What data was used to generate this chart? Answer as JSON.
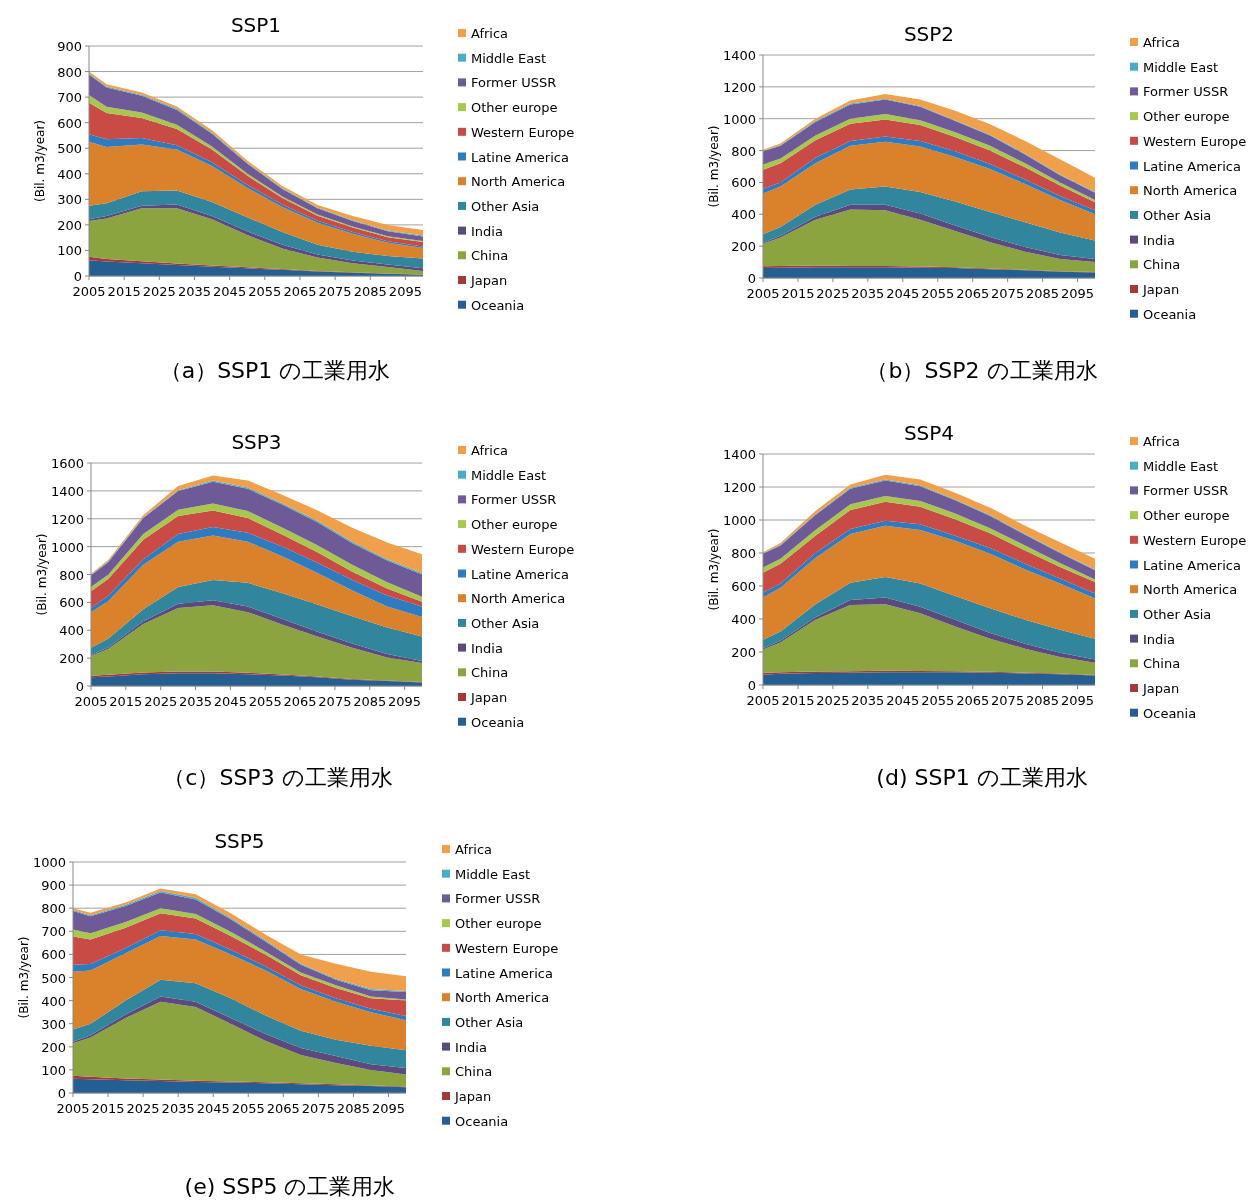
{
  "chart_data": [
    {
      "type": "area",
      "stacked": true,
      "title": "SSP1",
      "ylabel": "(Bil. m3/year)",
      "annotations": [
        "（a）SSP1 の工業用水"
      ],
      "grid": "y",
      "legend": "right",
      "x": [
        2005,
        2010,
        2020,
        2030,
        2040,
        2050,
        2060,
        2070,
        2080,
        2090,
        2100
      ],
      "xlim": [
        2005,
        2100
      ],
      "xticks": [
        2005,
        2015,
        2025,
        2035,
        2045,
        2055,
        2065,
        2075,
        2085,
        2095
      ],
      "ylim": [
        0,
        900
      ],
      "yticks": [
        0,
        100,
        200,
        300,
        400,
        500,
        600,
        700,
        800,
        900
      ],
      "series": [
        {
          "name": "Oceania",
          "color": "#255e91",
          "values": [
            62,
            57,
            50,
            43,
            36,
            30,
            24,
            18,
            13,
            9,
            5
          ]
        },
        {
          "name": "Japan",
          "color": "#a5393a",
          "values": [
            13,
            10,
            8,
            6,
            5,
            4,
            3,
            2,
            2,
            1,
            1
          ]
        },
        {
          "name": "China",
          "color": "#8ba43f",
          "values": [
            140,
            158,
            207,
            216,
            181,
            126,
            81,
            52,
            35,
            25,
            14
          ]
        },
        {
          "name": "India",
          "color": "#5a4a7e",
          "values": [
            7,
            10,
            10,
            15,
            13,
            15,
            14,
            12,
            11,
            10,
            10
          ]
        },
        {
          "name": "Other Asia",
          "color": "#31859c",
          "values": [
            53,
            50,
            57,
            55,
            55,
            55,
            50,
            38,
            34,
            33,
            38
          ]
        },
        {
          "name": "North America",
          "color": "#d9822b",
          "values": [
            250,
            220,
            183,
            160,
            140,
            115,
            98,
            86,
            70,
            52,
            42
          ]
        },
        {
          "name": "Latine America",
          "color": "#2e7bbf",
          "values": [
            30,
            30,
            25,
            17,
            15,
            12,
            10,
            8,
            7,
            6,
            5
          ]
        },
        {
          "name": "Western Europe",
          "color": "#c84b45",
          "values": [
            123,
            103,
            78,
            63,
            50,
            36,
            25,
            20,
            18,
            16,
            18
          ]
        },
        {
          "name": "Other europe",
          "color": "#a9c74f",
          "values": [
            30,
            24,
            22,
            17,
            12,
            8,
            6,
            5,
            4,
            4,
            4
          ]
        },
        {
          "name": "Former USSR",
          "color": "#6e5a96",
          "values": [
            80,
            76,
            65,
            58,
            50,
            39,
            29,
            24,
            21,
            19,
            18
          ]
        },
        {
          "name": "Middle East",
          "color": "#4bacc6",
          "values": [
            4,
            4,
            4,
            4,
            4,
            3,
            3,
            3,
            3,
            3,
            3
          ]
        },
        {
          "name": "Africa",
          "color": "#f0a04b",
          "values": [
            8,
            8,
            9,
            9,
            9,
            9,
            9,
            10,
            17,
            22,
            22
          ]
        }
      ]
    },
    {
      "type": "area",
      "stacked": true,
      "title": "SSP2",
      "ylabel": "(Bil. m3/year)",
      "annotations": [
        "（b）SSP2 の工業用水"
      ],
      "grid": "y",
      "legend": "right",
      "x": [
        2005,
        2010,
        2020,
        2030,
        2040,
        2050,
        2060,
        2070,
        2080,
        2090,
        2100
      ],
      "xlim": [
        2005,
        2100
      ],
      "xticks": [
        2005,
        2015,
        2025,
        2035,
        2045,
        2055,
        2065,
        2075,
        2085,
        2095
      ],
      "ylim": [
        0,
        1400
      ],
      "yticks": [
        0,
        200,
        400,
        600,
        800,
        1000,
        1200,
        1400
      ],
      "series": [
        {
          "name": "Oceania",
          "color": "#255e91",
          "values": [
            62,
            65,
            68,
            68,
            68,
            65,
            62,
            55,
            48,
            40,
            35
          ]
        },
        {
          "name": "Japan",
          "color": "#a5393a",
          "values": [
            12,
            10,
            10,
            8,
            8,
            7,
            6,
            5,
            4,
            3,
            2
          ]
        },
        {
          "name": "China",
          "color": "#8ba43f",
          "values": [
            141,
            180,
            287,
            354,
            349,
            293,
            227,
            165,
            113,
            77,
            63
          ]
        },
        {
          "name": "India",
          "color": "#5a4a7e",
          "values": [
            7,
            10,
            20,
            30,
            35,
            40,
            35,
            33,
            30,
            25,
            20
          ]
        },
        {
          "name": "Other Asia",
          "color": "#31859c",
          "values": [
            53,
            55,
            75,
            95,
            115,
            135,
            150,
            157,
            155,
            140,
            115
          ]
        },
        {
          "name": "North America",
          "color": "#d9822b",
          "values": [
            255,
            255,
            260,
            275,
            280,
            285,
            280,
            270,
            240,
            205,
            165
          ]
        },
        {
          "name": "Latine America",
          "color": "#2e7bbf",
          "values": [
            30,
            25,
            35,
            30,
            33,
            35,
            35,
            30,
            28,
            25,
            25
          ]
        },
        {
          "name": "Western Europe",
          "color": "#c84b45",
          "values": [
            120,
            120,
            110,
            108,
            107,
            100,
            90,
            85,
            77,
            65,
            50
          ]
        },
        {
          "name": "Other europe",
          "color": "#a9c74f",
          "values": [
            32,
            30,
            30,
            32,
            35,
            30,
            30,
            30,
            25,
            20,
            15
          ]
        },
        {
          "name": "Former USSR",
          "color": "#6e5a96",
          "values": [
            83,
            80,
            85,
            90,
            90,
            85,
            70,
            65,
            55,
            45,
            45
          ]
        },
        {
          "name": "Middle East",
          "color": "#4bacc6",
          "values": [
            3,
            5,
            5,
            5,
            5,
            5,
            5,
            5,
            5,
            5,
            5
          ]
        },
        {
          "name": "Africa",
          "color": "#f0a04b",
          "values": [
            7,
            10,
            15,
            20,
            30,
            40,
            60,
            65,
            80,
            95,
            90
          ]
        }
      ]
    },
    {
      "type": "area",
      "stacked": true,
      "title": "SSP3",
      "ylabel": "(Bil. m3/year)",
      "annotations": [
        "（c）SSP3 の工業用水"
      ],
      "grid": "y",
      "legend": "right",
      "x": [
        2005,
        2010,
        2020,
        2030,
        2040,
        2050,
        2060,
        2070,
        2080,
        2090,
        2100
      ],
      "xlim": [
        2005,
        2100
      ],
      "xticks": [
        2005,
        2015,
        2025,
        2035,
        2045,
        2055,
        2065,
        2075,
        2085,
        2095
      ],
      "ylim": [
        0,
        1600
      ],
      "yticks": [
        0,
        200,
        400,
        600,
        800,
        1000,
        1200,
        1400,
        1600
      ],
      "series": [
        {
          "name": "Oceania",
          "color": "#255e91",
          "values": [
            62,
            68,
            85,
            92,
            92,
            85,
            75,
            62,
            45,
            35,
            25
          ]
        },
        {
          "name": "Japan",
          "color": "#a5393a",
          "values": [
            12,
            12,
            12,
            12,
            12,
            10,
            8,
            6,
            5,
            4,
            3
          ]
        },
        {
          "name": "China",
          "color": "#8ba43f",
          "values": [
            141,
            188,
            348,
            456,
            476,
            435,
            357,
            287,
            225,
            166,
            137
          ]
        },
        {
          "name": "India",
          "color": "#5a4a7e",
          "values": [
            7,
            10,
            20,
            30,
            35,
            40,
            40,
            35,
            30,
            25,
            15
          ]
        },
        {
          "name": "Other Asia",
          "color": "#31859c",
          "values": [
            53,
            62,
            85,
            120,
            145,
            170,
            185,
            195,
            195,
            190,
            175
          ]
        },
        {
          "name": "North America",
          "color": "#d9822b",
          "values": [
            255,
            270,
            320,
            325,
            320,
            295,
            265,
            225,
            185,
            150,
            140
          ]
        },
        {
          "name": "Latine America",
          "color": "#2e7bbf",
          "values": [
            30,
            40,
            40,
            55,
            60,
            65,
            70,
            75,
            75,
            80,
            75
          ]
        },
        {
          "name": "Western Europe",
          "color": "#c84b45",
          "values": [
            120,
            120,
            140,
            130,
            120,
            105,
            85,
            75,
            60,
            50,
            35
          ]
        },
        {
          "name": "Other europe",
          "color": "#a9c74f",
          "values": [
            30,
            30,
            40,
            45,
            50,
            50,
            50,
            50,
            50,
            45,
            35
          ]
        },
        {
          "name": "Former USSR",
          "color": "#6e5a96",
          "values": [
            85,
            90,
            115,
            135,
            155,
            160,
            165,
            165,
            155,
            155,
            160
          ]
        },
        {
          "name": "Middle East",
          "color": "#4bacc6",
          "values": [
            3,
            5,
            5,
            5,
            10,
            10,
            10,
            10,
            10,
            10,
            10
          ]
        },
        {
          "name": "Africa",
          "color": "#f0a04b",
          "values": [
            7,
            10,
            15,
            30,
            35,
            50,
            60,
            75,
            100,
            120,
            135
          ]
        }
      ]
    },
    {
      "type": "area",
      "stacked": true,
      "title": "SSP4",
      "ylabel": "(Bil. m3/year)",
      "annotations": [
        "(d) SSP1 の工業用水"
      ],
      "grid": "y",
      "legend": "right",
      "x": [
        2005,
        2010,
        2020,
        2030,
        2040,
        2050,
        2060,
        2070,
        2080,
        2090,
        2100
      ],
      "xlim": [
        2005,
        2100
      ],
      "xticks": [
        2005,
        2015,
        2025,
        2035,
        2045,
        2055,
        2065,
        2075,
        2085,
        2095
      ],
      "ylim": [
        0,
        1400
      ],
      "yticks": [
        0,
        200,
        400,
        600,
        800,
        1000,
        1200,
        1400
      ],
      "series": [
        {
          "name": "Oceania",
          "color": "#255e91",
          "values": [
            62,
            68,
            72,
            75,
            78,
            78,
            78,
            75,
            70,
            65,
            58
          ]
        },
        {
          "name": "Japan",
          "color": "#a5393a",
          "values": [
            12,
            10,
            10,
            8,
            8,
            7,
            6,
            5,
            5,
            4,
            3
          ]
        },
        {
          "name": "China",
          "color": "#8ba43f",
          "values": [
            141,
            180,
            313,
            402,
            404,
            350,
            271,
            200,
            145,
            101,
            74
          ]
        },
        {
          "name": "India",
          "color": "#5a4a7e",
          "values": [
            7,
            10,
            15,
            30,
            40,
            40,
            40,
            35,
            30,
            25,
            20
          ]
        },
        {
          "name": "Other Asia",
          "color": "#31859c",
          "values": [
            53,
            57,
            80,
            105,
            125,
            140,
            145,
            150,
            145,
            140,
            125
          ]
        },
        {
          "name": "North America",
          "color": "#d9822b",
          "values": [
            255,
            265,
            280,
            295,
            310,
            325,
            335,
            330,
            305,
            280,
            245
          ]
        },
        {
          "name": "Latine America",
          "color": "#2e7bbf",
          "values": [
            30,
            25,
            30,
            30,
            30,
            35,
            30,
            35,
            35,
            30,
            30
          ]
        },
        {
          "name": "Western Europe",
          "color": "#c84b45",
          "values": [
            120,
            120,
            105,
            115,
            115,
            105,
            100,
            90,
            80,
            70,
            70
          ]
        },
        {
          "name": "Other europe",
          "color": "#a9c74f",
          "values": [
            32,
            30,
            35,
            35,
            35,
            35,
            35,
            30,
            30,
            25,
            15
          ]
        },
        {
          "name": "Former USSR",
          "color": "#6e5a96",
          "values": [
            83,
            80,
            90,
            95,
            95,
            90,
            80,
            75,
            65,
            60,
            55
          ]
        },
        {
          "name": "Middle East",
          "color": "#4bacc6",
          "values": [
            3,
            5,
            5,
            5,
            5,
            5,
            5,
            5,
            5,
            5,
            5
          ]
        },
        {
          "name": "Africa",
          "color": "#f0a04b",
          "values": [
            7,
            10,
            20,
            20,
            30,
            35,
            40,
            45,
            50,
            60,
            65
          ]
        }
      ]
    },
    {
      "type": "area",
      "stacked": true,
      "title": "SSP5",
      "ylabel": "(Bil. m3/year)",
      "annotations": [
        "(e) SSP5 の工業用水"
      ],
      "grid": "y",
      "legend": "right",
      "x": [
        2005,
        2010,
        2020,
        2030,
        2040,
        2050,
        2060,
        2070,
        2080,
        2090,
        2100
      ],
      "xlim": [
        2005,
        2100
      ],
      "xticks": [
        2005,
        2015,
        2025,
        2035,
        2045,
        2055,
        2065,
        2075,
        2085,
        2095
      ],
      "ylim": [
        0,
        1000
      ],
      "yticks": [
        0,
        100,
        200,
        300,
        400,
        500,
        600,
        700,
        800,
        900,
        1000
      ],
      "series": [
        {
          "name": "Oceania",
          "color": "#255e91",
          "values": [
            62,
            60,
            55,
            52,
            48,
            45,
            42,
            38,
            34,
            30,
            25
          ]
        },
        {
          "name": "Japan",
          "color": "#a5393a",
          "values": [
            13,
            10,
            8,
            6,
            5,
            5,
            4,
            4,
            4,
            3,
            3
          ]
        },
        {
          "name": "China",
          "color": "#8ba43f",
          "values": [
            140,
            170,
            262,
            337,
            319,
            250,
            179,
            123,
            92,
            67,
            52
          ]
        },
        {
          "name": "India",
          "color": "#5a4a7e",
          "values": [
            7,
            10,
            15,
            23,
            23,
            25,
            30,
            30,
            30,
            25,
            28
          ]
        },
        {
          "name": "Other Asia",
          "color": "#31859c",
          "values": [
            53,
            50,
            60,
            72,
            80,
            85,
            80,
            75,
            70,
            80,
            77
          ]
        },
        {
          "name": "North America",
          "color": "#d9822b",
          "values": [
            250,
            230,
            205,
            190,
            190,
            190,
            195,
            180,
            165,
            145,
            130
          ]
        },
        {
          "name": "Latine America",
          "color": "#2e7bbf",
          "values": [
            30,
            28,
            23,
            25,
            23,
            20,
            18,
            16,
            15,
            15,
            18
          ]
        },
        {
          "name": "Western Europe",
          "color": "#c84b45",
          "values": [
            123,
            107,
            87,
            73,
            67,
            60,
            50,
            44,
            45,
            45,
            67
          ]
        },
        {
          "name": "Other europe",
          "color": "#a9c74f",
          "values": [
            30,
            27,
            25,
            22,
            20,
            18,
            14,
            12,
            11,
            8,
            5
          ]
        },
        {
          "name": "Former USSR",
          "color": "#6e5a96",
          "values": [
            80,
            73,
            70,
            68,
            63,
            54,
            43,
            33,
            24,
            27,
            32
          ]
        },
        {
          "name": "Middle East",
          "color": "#4bacc6",
          "values": [
            4,
            5,
            5,
            7,
            7,
            6,
            5,
            5,
            5,
            5,
            5
          ]
        },
        {
          "name": "Africa",
          "color": "#f0a04b",
          "values": [
            8,
            10,
            10,
            10,
            15,
            20,
            25,
            40,
            65,
            75,
            63
          ]
        }
      ]
    }
  ]
}
